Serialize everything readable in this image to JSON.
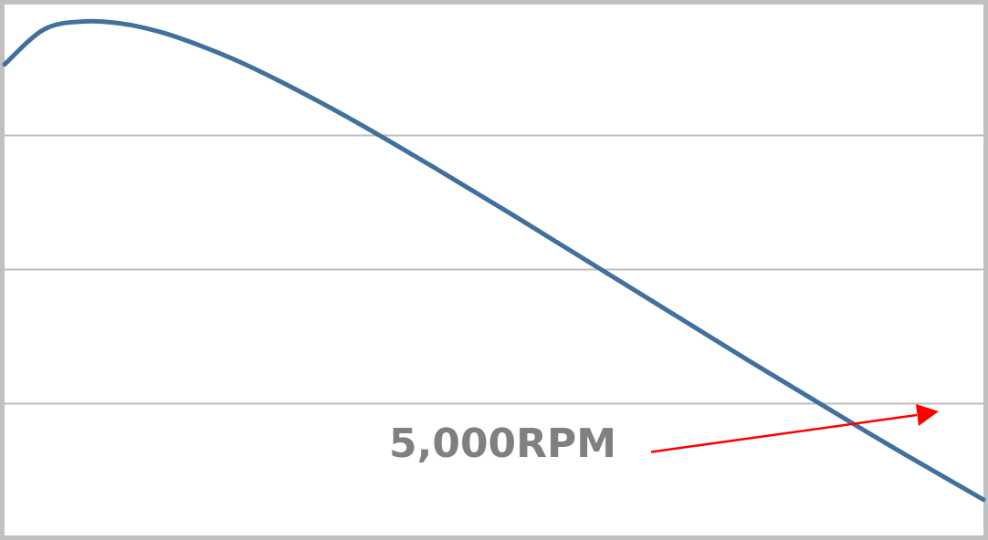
{
  "chart_data": {
    "type": "line",
    "title": "",
    "xlabel": "",
    "ylabel": "",
    "grid": true,
    "legend": "none",
    "series": [
      {
        "color": "#41709c",
        "points": [
          [
            0.0,
            0.88
          ],
          [
            0.04,
            0.945
          ],
          [
            0.08,
            0.96
          ],
          [
            0.12,
            0.956
          ],
          [
            0.16,
            0.94
          ],
          [
            0.2,
            0.915
          ],
          [
            0.24,
            0.885
          ],
          [
            0.28,
            0.85
          ],
          [
            0.32,
            0.812
          ],
          [
            0.36,
            0.772
          ],
          [
            0.4,
            0.73
          ],
          [
            0.44,
            0.687
          ],
          [
            0.48,
            0.643
          ],
          [
            0.52,
            0.599
          ],
          [
            0.56,
            0.554
          ],
          [
            0.6,
            0.509
          ],
          [
            0.64,
            0.464
          ],
          [
            0.68,
            0.419
          ],
          [
            0.72,
            0.374
          ],
          [
            0.76,
            0.329
          ],
          [
            0.8,
            0.285
          ],
          [
            0.84,
            0.241
          ],
          [
            0.88,
            0.197
          ],
          [
            0.92,
            0.154
          ],
          [
            0.96,
            0.112
          ],
          [
            1.0,
            0.07
          ]
        ]
      }
    ],
    "annotation": {
      "text": "5,000RPM",
      "color": "#808080",
      "arrow_color": "#ff0000"
    }
  }
}
